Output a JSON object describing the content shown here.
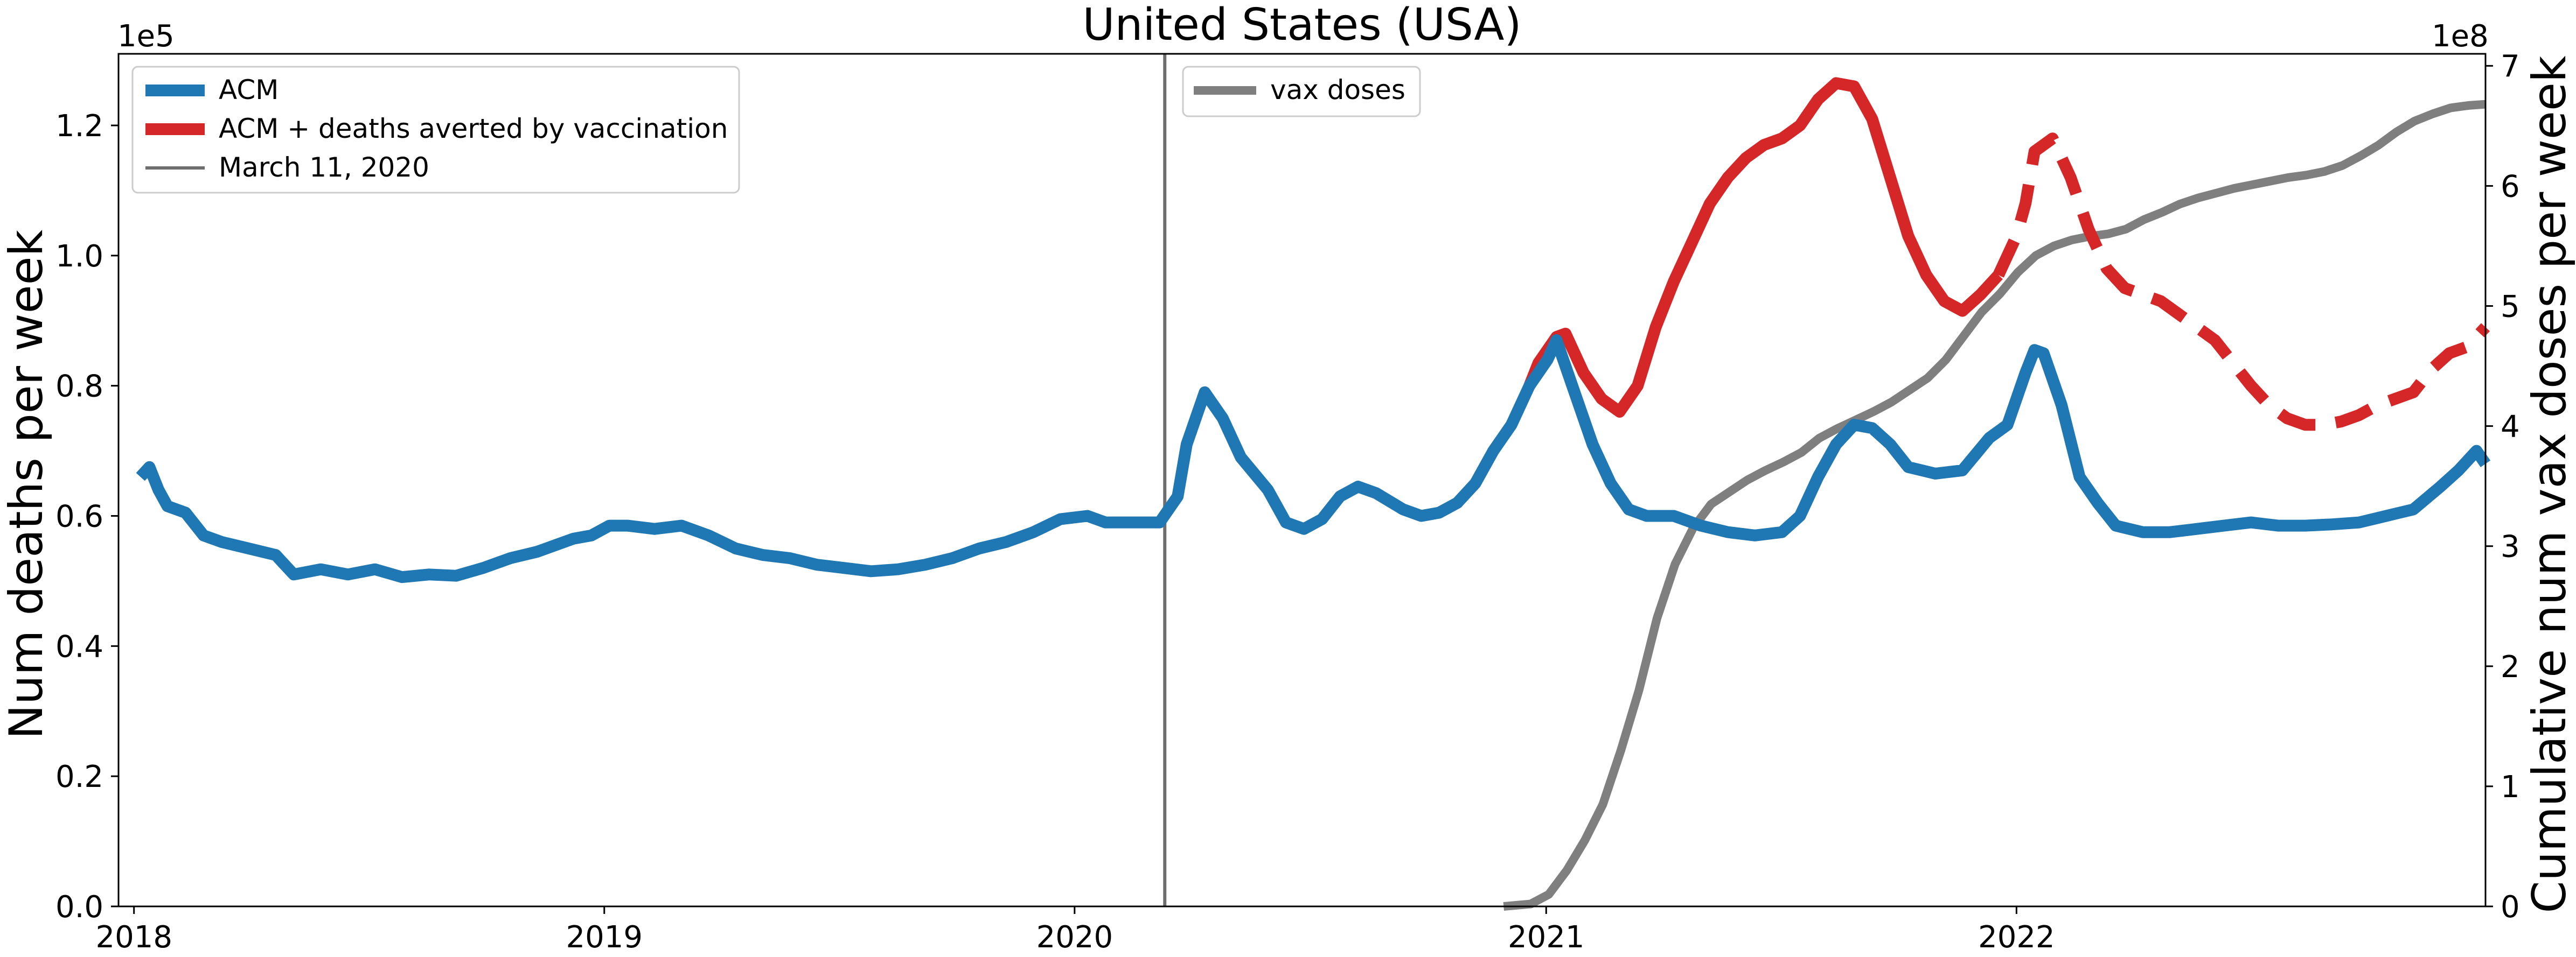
{
  "chart_data": {
    "type": "line",
    "title": "United States (USA)",
    "ylabel": "Num deaths per week",
    "y2label": "Cumulative num vax doses per week",
    "ylim": [
      0,
      131000
    ],
    "y2lim": [
      0,
      710000000
    ],
    "y_scale_label": "1e5",
    "y2_scale_label": "1e8",
    "xlim": [
      "2017-12-20",
      "2022-12-31"
    ],
    "x_ticks": [
      "2018",
      "2019",
      "2020",
      "2021",
      "2022"
    ],
    "y_ticks": [
      "0.0",
      "0.2",
      "0.4",
      "0.6",
      "0.8",
      "1.0",
      "1.2"
    ],
    "y2_ticks": [
      "0",
      "1",
      "2",
      "3",
      "4",
      "5",
      "6",
      "7"
    ],
    "grid": false,
    "legend_left": {
      "placement": "top-left",
      "items": [
        "ACM",
        "ACM + deaths averted by vaccination",
        "March 11, 2020"
      ]
    },
    "legend_right": {
      "placement": "top-left of right panel",
      "items": [
        "vax doses"
      ]
    },
    "vertical_line": {
      "name": "March 11, 2020",
      "x": "2020-03-11"
    },
    "colors": {
      "acm": "#1f77b4",
      "averted": "#d62728",
      "vax": "#7f7f7f",
      "vline": "#6e6e6e"
    },
    "series": [
      {
        "name": "ACM",
        "axis": "left",
        "points": [
          [
            "2018-01-06",
            66000
          ],
          [
            "2018-01-13",
            67500
          ],
          [
            "2018-01-20",
            64000
          ],
          [
            "2018-01-27",
            61500
          ],
          [
            "2018-02-10",
            60500
          ],
          [
            "2018-02-24",
            57000
          ],
          [
            "2018-03-10",
            56000
          ],
          [
            "2018-03-31",
            55000
          ],
          [
            "2018-04-21",
            54000
          ],
          [
            "2018-05-05",
            51000
          ],
          [
            "2018-05-26",
            51800
          ],
          [
            "2018-06-16",
            51000
          ],
          [
            "2018-07-07",
            51800
          ],
          [
            "2018-07-28",
            50600
          ],
          [
            "2018-08-18",
            51000
          ],
          [
            "2018-09-08",
            50800
          ],
          [
            "2018-09-29",
            52000
          ],
          [
            "2018-10-20",
            53500
          ],
          [
            "2018-11-10",
            54500
          ],
          [
            "2018-11-24",
            55500
          ],
          [
            "2018-12-08",
            56500
          ],
          [
            "2018-12-22",
            57000
          ],
          [
            "2019-01-05",
            58500
          ],
          [
            "2019-01-19",
            58500
          ],
          [
            "2019-02-09",
            58000
          ],
          [
            "2019-03-02",
            58500
          ],
          [
            "2019-03-23",
            57000
          ],
          [
            "2019-04-13",
            55000
          ],
          [
            "2019-05-04",
            54000
          ],
          [
            "2019-05-25",
            53500
          ],
          [
            "2019-06-15",
            52500
          ],
          [
            "2019-07-06",
            52000
          ],
          [
            "2019-07-27",
            51500
          ],
          [
            "2019-08-17",
            51800
          ],
          [
            "2019-09-07",
            52500
          ],
          [
            "2019-09-28",
            53500
          ],
          [
            "2019-10-19",
            55000
          ],
          [
            "2019-11-09",
            56000
          ],
          [
            "2019-11-30",
            57500
          ],
          [
            "2019-12-21",
            59500
          ],
          [
            "2020-01-11",
            60000
          ],
          [
            "2020-01-25",
            59000
          ],
          [
            "2020-02-15",
            59000
          ],
          [
            "2020-03-07",
            59000
          ],
          [
            "2020-03-21",
            63000
          ],
          [
            "2020-03-28",
            71000
          ],
          [
            "2020-04-11",
            79000
          ],
          [
            "2020-04-25",
            75000
          ],
          [
            "2020-05-09",
            69000
          ],
          [
            "2020-05-30",
            64000
          ],
          [
            "2020-06-13",
            59000
          ],
          [
            "2020-06-27",
            58000
          ],
          [
            "2020-07-11",
            59500
          ],
          [
            "2020-07-25",
            63000
          ],
          [
            "2020-08-08",
            64500
          ],
          [
            "2020-08-22",
            63500
          ],
          [
            "2020-09-12",
            61000
          ],
          [
            "2020-09-26",
            60000
          ],
          [
            "2020-10-10",
            60500
          ],
          [
            "2020-10-24",
            62000
          ],
          [
            "2020-11-07",
            65000
          ],
          [
            "2020-11-21",
            70000
          ],
          [
            "2020-12-05",
            74000
          ],
          [
            "2020-12-19",
            80000
          ],
          [
            "2021-01-02",
            84000
          ],
          [
            "2021-01-09",
            87000
          ],
          [
            "2021-01-23",
            79000
          ],
          [
            "2021-02-06",
            71000
          ],
          [
            "2021-02-20",
            65000
          ],
          [
            "2021-03-06",
            61000
          ],
          [
            "2021-03-20",
            60000
          ],
          [
            "2021-04-10",
            60000
          ],
          [
            "2021-05-01",
            58500
          ],
          [
            "2021-05-22",
            57500
          ],
          [
            "2021-06-12",
            57000
          ],
          [
            "2021-07-03",
            57500
          ],
          [
            "2021-07-17",
            60000
          ],
          [
            "2021-07-31",
            66000
          ],
          [
            "2021-08-14",
            71000
          ],
          [
            "2021-08-28",
            74000
          ],
          [
            "2021-09-11",
            73500
          ],
          [
            "2021-09-25",
            71000
          ],
          [
            "2021-10-09",
            67500
          ],
          [
            "2021-10-30",
            66500
          ],
          [
            "2021-11-20",
            67000
          ],
          [
            "2021-12-11",
            72000
          ],
          [
            "2021-12-25",
            74000
          ],
          [
            "2022-01-08",
            82000
          ],
          [
            "2022-01-15",
            85500
          ],
          [
            "2022-01-22",
            85000
          ],
          [
            "2022-02-05",
            77000
          ],
          [
            "2022-02-19",
            66000
          ],
          [
            "2022-03-05",
            62000
          ],
          [
            "2022-03-19",
            58500
          ],
          [
            "2022-04-09",
            57500
          ],
          [
            "2022-04-30",
            57500
          ],
          [
            "2022-05-21",
            58000
          ],
          [
            "2022-06-11",
            58500
          ],
          [
            "2022-07-02",
            59000
          ],
          [
            "2022-07-23",
            58500
          ],
          [
            "2022-08-13",
            58500
          ],
          [
            "2022-09-03",
            58700
          ],
          [
            "2022-09-24",
            59000
          ],
          [
            "2022-10-15",
            60000
          ],
          [
            "2022-11-05",
            61000
          ],
          [
            "2022-11-26",
            64500
          ],
          [
            "2022-12-10",
            67000
          ],
          [
            "2022-12-24",
            70000
          ],
          [
            "2022-12-31",
            68000
          ]
        ]
      },
      {
        "name": "ACM + deaths averted by vaccination",
        "axis": "left",
        "points": [
          [
            "2020-12-19",
            80000
          ],
          [
            "2020-12-26",
            83500
          ],
          [
            "2021-01-09",
            87500
          ],
          [
            "2021-01-16",
            88000
          ],
          [
            "2021-01-30",
            82000
          ],
          [
            "2021-02-13",
            78000
          ],
          [
            "2021-02-27",
            76000
          ],
          [
            "2021-03-13",
            80000
          ],
          [
            "2021-03-27",
            89000
          ],
          [
            "2021-04-10",
            96000
          ],
          [
            "2021-04-24",
            102000
          ],
          [
            "2021-05-08",
            108000
          ],
          [
            "2021-05-22",
            112000
          ],
          [
            "2021-06-05",
            115000
          ],
          [
            "2021-06-19",
            117000
          ],
          [
            "2021-07-03",
            118000
          ],
          [
            "2021-07-17",
            120000
          ],
          [
            "2021-07-31",
            124000
          ],
          [
            "2021-08-14",
            126500
          ],
          [
            "2021-08-28",
            126000
          ],
          [
            "2021-09-11",
            121000
          ],
          [
            "2021-09-25",
            112000
          ],
          [
            "2021-10-09",
            103000
          ],
          [
            "2021-10-23",
            97000
          ],
          [
            "2021-11-06",
            93000
          ],
          [
            "2021-11-20",
            91500
          ],
          [
            "2021-12-04",
            94000
          ],
          [
            "2021-12-18",
            97000
          ]
        ]
      },
      {
        "name": "ACM + deaths averted by vaccination (dashed)",
        "axis": "left",
        "dashed": true,
        "points": [
          [
            "2021-12-18",
            97000
          ],
          [
            "2022-01-01",
            103000
          ],
          [
            "2022-01-08",
            108000
          ],
          [
            "2022-01-15",
            116000
          ],
          [
            "2022-01-29",
            118000
          ],
          [
            "2022-02-12",
            112000
          ],
          [
            "2022-02-26",
            104000
          ],
          [
            "2022-03-12",
            98000
          ],
          [
            "2022-03-26",
            95000
          ],
          [
            "2022-04-09",
            94000
          ],
          [
            "2022-04-23",
            93000
          ],
          [
            "2022-05-07",
            91000
          ],
          [
            "2022-05-21",
            89000
          ],
          [
            "2022-06-04",
            87000
          ],
          [
            "2022-06-18",
            83500
          ],
          [
            "2022-07-02",
            80000
          ],
          [
            "2022-07-16",
            77000
          ],
          [
            "2022-07-30",
            75000
          ],
          [
            "2022-08-13",
            74000
          ],
          [
            "2022-08-27",
            74000
          ],
          [
            "2022-09-10",
            74500
          ],
          [
            "2022-09-24",
            75500
          ],
          [
            "2022-10-08",
            77000
          ],
          [
            "2022-10-22",
            78000
          ],
          [
            "2022-11-05",
            79000
          ],
          [
            "2022-11-19",
            82500
          ],
          [
            "2022-12-03",
            85000
          ],
          [
            "2022-12-17",
            86000
          ],
          [
            "2022-12-31",
            89000
          ]
        ]
      },
      {
        "name": "vax doses",
        "axis": "right",
        "points": [
          [
            "2020-11-29",
            0
          ],
          [
            "2020-12-20",
            2000000
          ],
          [
            "2021-01-03",
            10000000
          ],
          [
            "2021-01-17",
            30000000
          ],
          [
            "2021-01-31",
            55000000
          ],
          [
            "2021-02-14",
            85000000
          ],
          [
            "2021-02-28",
            130000000
          ],
          [
            "2021-03-14",
            180000000
          ],
          [
            "2021-03-28",
            240000000
          ],
          [
            "2021-04-11",
            285000000
          ],
          [
            "2021-04-25",
            315000000
          ],
          [
            "2021-05-09",
            335000000
          ],
          [
            "2021-05-23",
            345000000
          ],
          [
            "2021-06-06",
            355000000
          ],
          [
            "2021-06-20",
            363000000
          ],
          [
            "2021-07-04",
            370000000
          ],
          [
            "2021-07-18",
            378000000
          ],
          [
            "2021-08-01",
            390000000
          ],
          [
            "2021-08-15",
            398000000
          ],
          [
            "2021-08-29",
            405000000
          ],
          [
            "2021-09-12",
            412000000
          ],
          [
            "2021-09-26",
            420000000
          ],
          [
            "2021-10-10",
            430000000
          ],
          [
            "2021-10-24",
            440000000
          ],
          [
            "2021-11-07",
            455000000
          ],
          [
            "2021-11-21",
            475000000
          ],
          [
            "2021-12-05",
            495000000
          ],
          [
            "2021-12-19",
            510000000
          ],
          [
            "2022-01-02",
            528000000
          ],
          [
            "2022-01-16",
            542000000
          ],
          [
            "2022-01-30",
            550000000
          ],
          [
            "2022-02-13",
            555000000
          ],
          [
            "2022-02-27",
            558000000
          ],
          [
            "2022-03-13",
            560000000
          ],
          [
            "2022-03-27",
            564000000
          ],
          [
            "2022-04-10",
            572000000
          ],
          [
            "2022-04-24",
            578000000
          ],
          [
            "2022-05-08",
            585000000
          ],
          [
            "2022-05-22",
            590000000
          ],
          [
            "2022-06-05",
            594000000
          ],
          [
            "2022-06-19",
            598000000
          ],
          [
            "2022-07-03",
            601000000
          ],
          [
            "2022-07-17",
            604000000
          ],
          [
            "2022-07-31",
            607000000
          ],
          [
            "2022-08-14",
            609000000
          ],
          [
            "2022-08-28",
            612000000
          ],
          [
            "2022-09-11",
            617000000
          ],
          [
            "2022-09-25",
            625000000
          ],
          [
            "2022-10-09",
            634000000
          ],
          [
            "2022-10-23",
            645000000
          ],
          [
            "2022-11-06",
            654000000
          ],
          [
            "2022-11-20",
            660000000
          ],
          [
            "2022-12-04",
            665000000
          ],
          [
            "2022-12-18",
            667000000
          ],
          [
            "2022-12-31",
            668000000
          ]
        ]
      }
    ]
  }
}
